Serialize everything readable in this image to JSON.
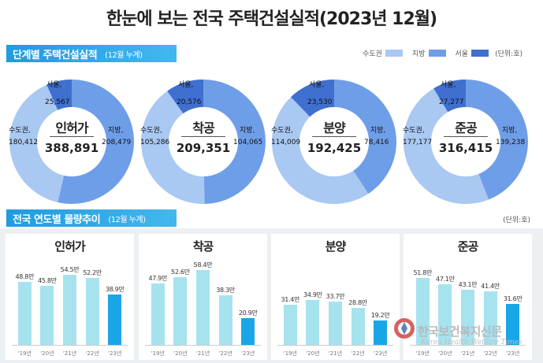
{
  "title": "한눈에 보는 전국 주택건설실적(2023년 12월)",
  "section1": {
    "title": "단계별 주택건설실적",
    "subtitle": "(12월 누계)"
  },
  "legend": {
    "items": [
      {
        "label": "수도권",
        "color": "#a9c8f2"
      },
      {
        "label": "지방",
        "color": "#6f9ee8"
      },
      {
        "label": "서울",
        "color": "#3f6fcf"
      }
    ],
    "unit": "(단위:호)"
  },
  "section2": {
    "title": "전국 연도별 물량추이",
    "subtitle": "(12월 누계)",
    "unit": "(단위:호)"
  },
  "chart_data": [
    {
      "type": "pie",
      "title": "인허가",
      "total": "388,891",
      "slices": [
        {
          "name": "수도권",
          "value": 180412,
          "label": "수도권,\n180,412"
        },
        {
          "name": "지방",
          "value": 208479,
          "label": "지방,\n208,479"
        },
        {
          "name": "서울",
          "value": 25567,
          "label": "서울,\n25,567"
        }
      ]
    },
    {
      "type": "pie",
      "title": "착공",
      "total": "209,351",
      "slices": [
        {
          "name": "수도권",
          "value": 105286,
          "label": "수도권,\n105,286"
        },
        {
          "name": "지방",
          "value": 104065,
          "label": "지방,\n104,065"
        },
        {
          "name": "서울",
          "value": 20576,
          "label": "서울,\n20,576"
        }
      ]
    },
    {
      "type": "pie",
      "title": "분양",
      "total": "192,425",
      "slices": [
        {
          "name": "수도권",
          "value": 114009,
          "label": "수도권,\n114,009"
        },
        {
          "name": "지방",
          "value": 78416,
          "label": "지방,\n78,416"
        },
        {
          "name": "서울",
          "value": 23530,
          "label": "서울,\n23,530"
        }
      ]
    },
    {
      "type": "pie",
      "title": "준공",
      "total": "316,415",
      "slices": [
        {
          "name": "수도권",
          "value": 177177,
          "label": "수도권,\n177,177"
        },
        {
          "name": "지방",
          "value": 139238,
          "label": "지방,\n139,238"
        },
        {
          "name": "서울",
          "value": 27277,
          "label": "서울,\n27,277"
        }
      ]
    },
    {
      "type": "bar",
      "title": "인허가",
      "categories": [
        "'19년",
        "'20년",
        "'21년",
        "'22년",
        "'23년"
      ],
      "values": [
        48.8,
        45.8,
        54.5,
        52.2,
        38.9
      ],
      "labels": [
        "48.8만",
        "45.8만",
        "54.5만",
        "52.2만",
        "38.9만"
      ],
      "ylim": [
        0,
        60
      ]
    },
    {
      "type": "bar",
      "title": "착공",
      "categories": [
        "'19년",
        "'20년",
        "'21년",
        "'22년",
        "'23년"
      ],
      "values": [
        47.9,
        52.6,
        58.4,
        38.3,
        20.9
      ],
      "labels": [
        "47.9만",
        "52.6만",
        "58.4만",
        "38.3만",
        "20.9만"
      ],
      "ylim": [
        0,
        60
      ]
    },
    {
      "type": "bar",
      "title": "분양",
      "categories": [
        "'19년",
        "'20년",
        "'21년",
        "'22년",
        "'23년"
      ],
      "values": [
        31.4,
        34.9,
        33.7,
        28.8,
        19.2
      ],
      "labels": [
        "31.4만",
        "34.9만",
        "33.7만",
        "28.8만",
        "19.2만"
      ],
      "ylim": [
        0,
        60
      ]
    },
    {
      "type": "bar",
      "title": "준공",
      "categories": [
        "'19년",
        "'20년",
        "'21년",
        "'22년",
        "'23년"
      ],
      "values": [
        51.8,
        47.1,
        43.1,
        41.4,
        31.6
      ],
      "labels": [
        "51.8만",
        "47.1만",
        "43.1만",
        "41.4만",
        "31.6만"
      ],
      "ylim": [
        0,
        60
      ]
    }
  ],
  "colors": {
    "metro": "#a9c8f2",
    "local": "#6f9ee8",
    "seoul": "#3f6fcf",
    "bar_past": "#a6e3ef",
    "bar_current": "#1aa6e6",
    "header": "#2aa5e6"
  },
  "watermark": {
    "name": "한국보건복지신문",
    "sub": "Korea Health Welfare Times"
  }
}
